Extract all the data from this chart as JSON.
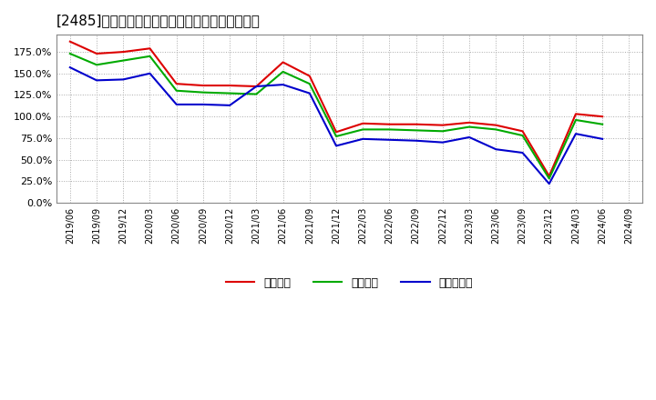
{
  "title": "[2485]　流動比率、当座比率、現預金比率の推移",
  "x_labels": [
    "2019/06",
    "2019/09",
    "2019/12",
    "2020/03",
    "2020/06",
    "2020/09",
    "2020/12",
    "2021/03",
    "2021/06",
    "2021/09",
    "2021/12",
    "2022/03",
    "2022/06",
    "2022/09",
    "2022/12",
    "2023/03",
    "2023/06",
    "2023/09",
    "2023/12",
    "2024/03",
    "2024/06",
    "2024/09"
  ],
  "ryudo": [
    1.87,
    1.73,
    1.75,
    1.79,
    1.38,
    1.36,
    1.36,
    1.35,
    1.63,
    1.47,
    0.82,
    0.92,
    0.91,
    0.91,
    0.9,
    0.93,
    0.9,
    0.83,
    0.31,
    1.03,
    1.0,
    null
  ],
  "toza": [
    1.73,
    1.6,
    1.65,
    1.7,
    1.3,
    1.28,
    1.27,
    1.26,
    1.52,
    1.38,
    0.77,
    0.85,
    0.85,
    0.84,
    0.83,
    0.88,
    0.85,
    0.78,
    0.28,
    0.96,
    0.91,
    null
  ],
  "genkin": [
    1.57,
    1.42,
    1.43,
    1.5,
    1.14,
    1.14,
    1.13,
    1.35,
    1.37,
    1.27,
    0.66,
    0.74,
    0.73,
    0.72,
    0.7,
    0.76,
    0.62,
    0.58,
    0.22,
    0.8,
    0.74,
    null
  ],
  "ryudo_color": "#dd0000",
  "toza_color": "#00aa00",
  "genkin_color": "#0000cc",
  "background_color": "#ffffff",
  "grid_color": "#aaaaaa",
  "ylim": [
    0.0,
    1.95
  ],
  "yticks": [
    0.0,
    0.25,
    0.5,
    0.75,
    1.0,
    1.25,
    1.5,
    1.75
  ],
  "legend_labels": [
    "流動比率",
    "当座比率",
    "現預金比率"
  ]
}
